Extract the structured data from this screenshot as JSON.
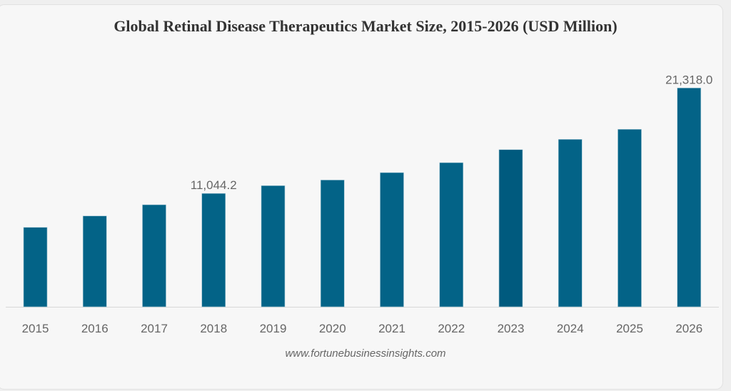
{
  "chart_data": {
    "type": "bar",
    "title": "Global Retinal Disease Therapeutics Market Size, 2015-2026 (USD Million)",
    "xlabel": "",
    "ylabel": "",
    "categories": [
      "2015",
      "2016",
      "2017",
      "2018",
      "2019",
      "2020",
      "2021",
      "2022",
      "2023",
      "2024",
      "2025",
      "2026"
    ],
    "values": [
      7740,
      8850,
      9940,
      11044.2,
      11800,
      12350,
      13070,
      14040,
      15310,
      16310,
      17290,
      21318.0
    ],
    "data_labels": [
      {
        "category": "2018",
        "text": "11,044.2"
      },
      {
        "category": "2026",
        "text": "21,318.0"
      }
    ],
    "ylim": [
      0,
      21318.0
    ],
    "grid": false,
    "highlighted_category": "2023",
    "colors": {
      "bar": "#036387",
      "bar_highlight": "#005a7e",
      "axis": "#d8d8d8",
      "text": "#666666"
    }
  },
  "source": "www.fortunebusinessinsights.com"
}
